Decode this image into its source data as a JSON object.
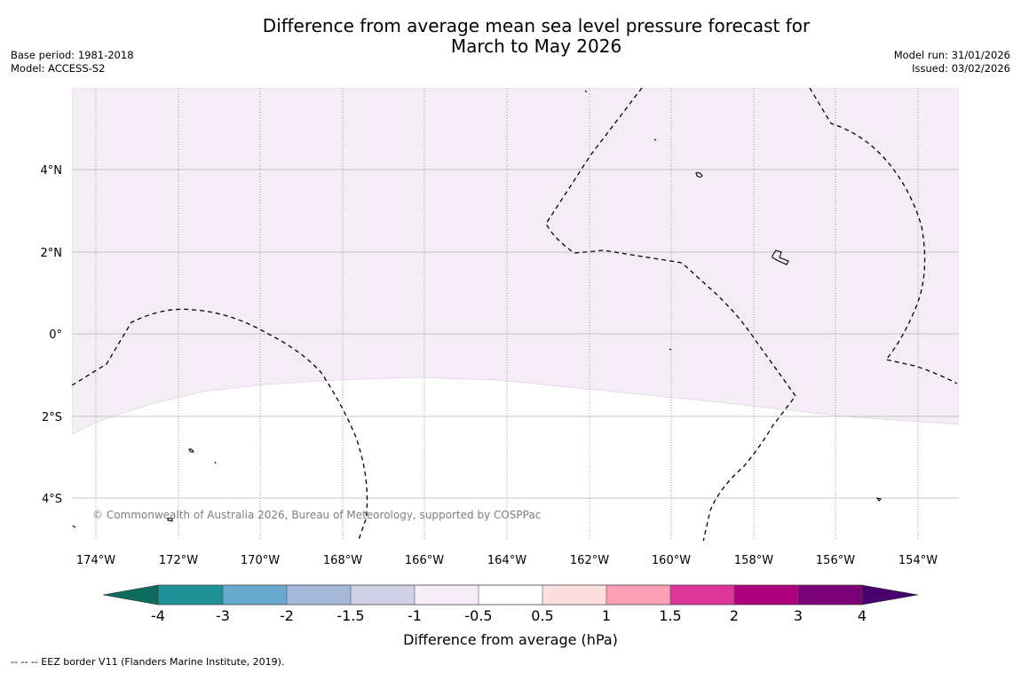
{
  "title_line1": "Difference from average mean sea level pressure forecast for",
  "title_line2": "March to May 2026",
  "base_period": "Base period: 1981-2018",
  "model": "Model: ACCESS-S2",
  "model_run": "Model run: 31/01/2026",
  "issued": "Issued: 03/02/2026",
  "copyright": "© Commonwealth of Australia 2026, Bureau of Meteorology, supported by COSPPac",
  "footnote": "--  --  -- EEZ border V11 (Flanders Marine Institute, 2019).",
  "map": {
    "lat_range": [
      -5.0,
      6.0
    ],
    "lon_range": [
      -174.6,
      -153.0
    ],
    "lat_labels": [
      "4°N",
      "2°N",
      "0°",
      "2°S",
      "4°S"
    ],
    "lon_labels": [
      "174°W",
      "172°W",
      "170°W",
      "168°W",
      "166°W",
      "164°W",
      "162°W",
      "160°W",
      "158°W",
      "156°W",
      "154°W"
    ],
    "shading": [
      {
        "category": "-1 to -0.5",
        "color": "#f4edf5",
        "region": "north of about 1.2°S to 2.5°S"
      },
      {
        "category": "-0.5 to 0.5",
        "color": "#ffffff",
        "region": "south of the boundary"
      }
    ]
  },
  "colorbar": {
    "label": "Difference from average (hPa)",
    "tick_labels": [
      "-4",
      "-3",
      "-2",
      "-1.5",
      "-1",
      "-0.5",
      "0.5",
      "1",
      "1.5",
      "2",
      "3",
      "4"
    ],
    "colors": [
      "#0e6b5e",
      "#1e9196",
      "#67a9cf",
      "#a6b8da",
      "#d0d1e6",
      "#f5eef7",
      "#ffffff",
      "#fde0dd",
      "#fa9fb5",
      "#dd3497",
      "#ae017e",
      "#7a0177",
      "#49006a"
    ]
  }
}
